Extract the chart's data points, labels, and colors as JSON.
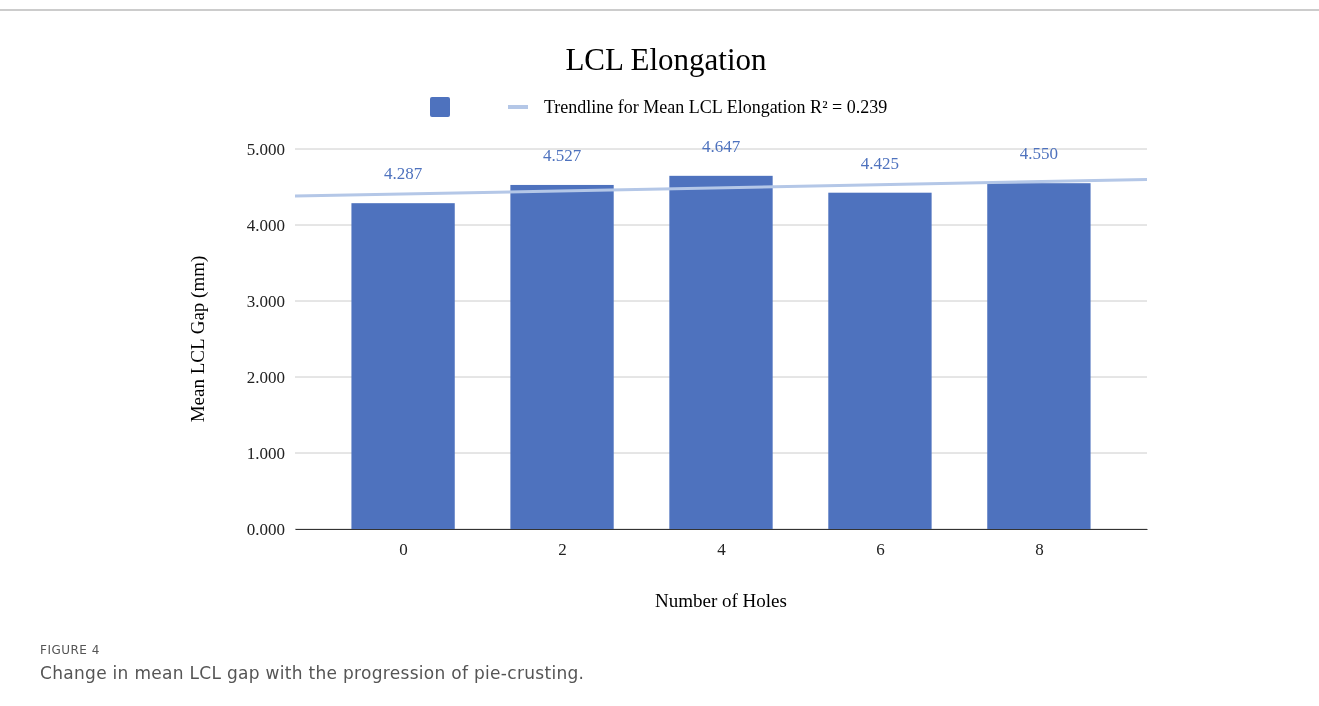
{
  "chart_data": {
    "type": "bar",
    "title": "LCL Elongation",
    "xlabel": "Number of Holes",
    "ylabel": "Mean LCL Gap (mm)",
    "x": [
      0,
      2,
      4,
      6,
      8
    ],
    "series": [
      {
        "color": "#4e72be",
        "values": [
          4.287,
          4.527,
          4.647,
          4.425,
          4.55
        ],
        "value_labels": [
          "4.287",
          "4.527",
          "4.647",
          "4.425",
          "4.550"
        ]
      },
      {
        "type": "line",
        "name": "Trendline for Mean LCL Elongation R² = 0.239",
        "color": "#b4c7e7",
        "x": [
          -1.36,
          9.36
        ],
        "values": [
          4.38,
          4.6
        ]
      }
    ],
    "xlim": [
      -1.36,
      9.36
    ],
    "xticks": [
      0,
      2,
      4,
      6,
      8
    ],
    "ylim": [
      0,
      5
    ],
    "yticks": [
      {
        "value": 0,
        "label": "0.000"
      },
      {
        "value": 1,
        "label": "1.000"
      },
      {
        "value": 2,
        "label": "2.000"
      },
      {
        "value": 3,
        "label": "3.000"
      },
      {
        "value": 4,
        "label": "4.000"
      },
      {
        "value": 5,
        "label": "5.000"
      }
    ],
    "grid": "y",
    "legend": "top",
    "annotations": [
      "FIGURE 4",
      "Change in mean LCL gap with the progression of pie-crusting."
    ]
  }
}
